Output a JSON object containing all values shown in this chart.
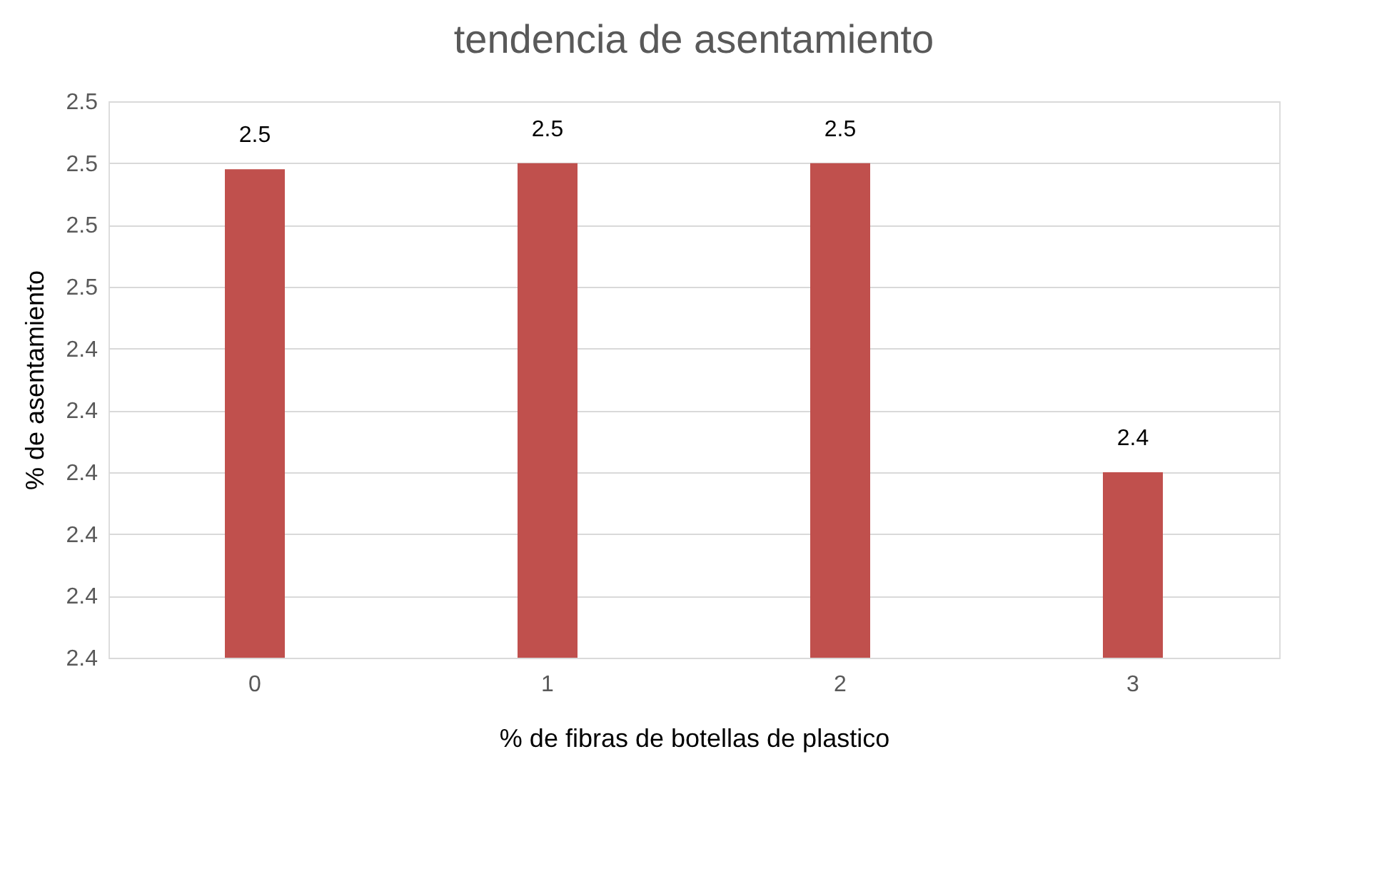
{
  "chart_data": {
    "type": "bar",
    "title": "tendencia de asentamiento",
    "xlabel": "% de fibras de botellas de plastico",
    "ylabel": "% de asentamiento",
    "categories": [
      "0",
      "1",
      "2",
      "3"
    ],
    "values": [
      2.469,
      2.47,
      2.47,
      2.42
    ],
    "value_labels": [
      "2.5",
      "2.5",
      "2.5",
      "2.4"
    ],
    "color": "#c0504d",
    "ylim": [
      2.39,
      2.48
    ],
    "yticks": [
      {
        "value": 2.39,
        "label": "2.4"
      },
      {
        "value": 2.4,
        "label": "2.4"
      },
      {
        "value": 2.41,
        "label": "2.4"
      },
      {
        "value": 2.42,
        "label": "2.4"
      },
      {
        "value": 2.43,
        "label": "2.4"
      },
      {
        "value": 2.44,
        "label": "2.4"
      },
      {
        "value": 2.45,
        "label": "2.5"
      },
      {
        "value": 2.46,
        "label": "2.5"
      },
      {
        "value": 2.47,
        "label": "2.5"
      },
      {
        "value": 2.48,
        "label": "2.5"
      }
    ],
    "grid": "y"
  }
}
